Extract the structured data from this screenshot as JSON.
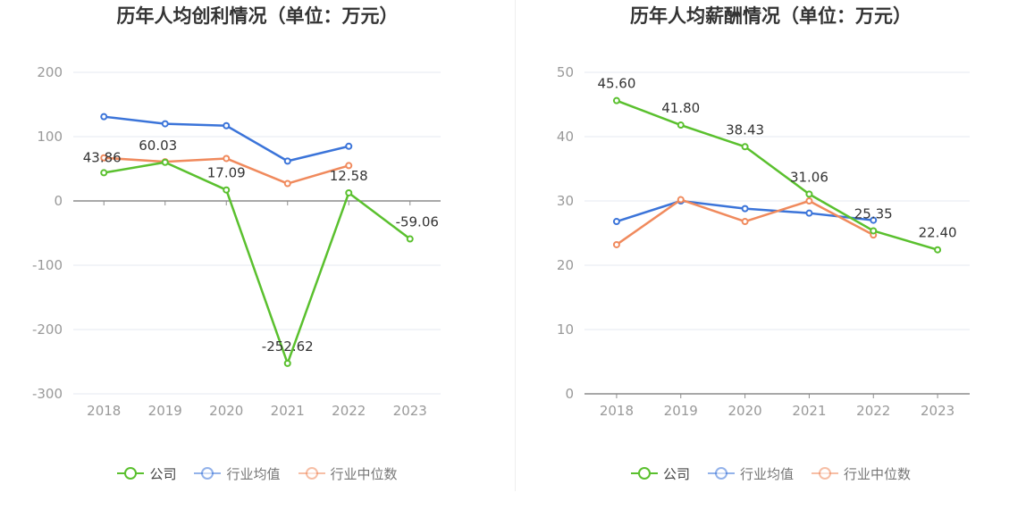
{
  "chart_data": [
    {
      "type": "line",
      "title": "历年人均创利情况（单位：万元）",
      "categories": [
        "2018",
        "2019",
        "2020",
        "2021",
        "2022",
        "2023"
      ],
      "ylim": [
        -300,
        200
      ],
      "yticks": [
        "200",
        "100",
        "0",
        "-100",
        "-200",
        "-300"
      ],
      "ytick_values": [
        200,
        100,
        0,
        -100,
        -200,
        -300
      ],
      "grid": true,
      "legend_position": "bottom",
      "series": [
        {
          "name": "公司",
          "color": "#5ac02e",
          "values": [
            43.86,
            60.03,
            17.09,
            -252.62,
            12.58,
            -59.06
          ],
          "labels": [
            "43.86",
            "60.03",
            "17.09",
            "-252.62",
            "12.58",
            "-59.06"
          ]
        },
        {
          "name": "行业均值",
          "color": "#3b74d9",
          "values": [
            131,
            120,
            117,
            62,
            85,
            null
          ]
        },
        {
          "name": "行业中位数",
          "color": "#f08a5d",
          "values": [
            67,
            61,
            66,
            27,
            55,
            null
          ]
        }
      ]
    },
    {
      "type": "line",
      "title": "历年人均薪酬情况（单位：万元）",
      "categories": [
        "2018",
        "2019",
        "2020",
        "2021",
        "2022",
        "2023"
      ],
      "ylim": [
        0,
        50
      ],
      "yticks": [
        "50",
        "40",
        "30",
        "20",
        "10",
        "0"
      ],
      "ytick_values": [
        50,
        40,
        30,
        20,
        10,
        0
      ],
      "grid": true,
      "legend_position": "bottom",
      "series": [
        {
          "name": "公司",
          "color": "#5ac02e",
          "values": [
            45.6,
            41.8,
            38.43,
            31.06,
            25.35,
            22.4
          ],
          "labels": [
            "45.60",
            "41.80",
            "38.43",
            "31.06",
            "25.35",
            "22.40"
          ]
        },
        {
          "name": "行业均值",
          "color": "#3b74d9",
          "values": [
            26.8,
            30.0,
            28.8,
            28.1,
            27.0,
            null
          ]
        },
        {
          "name": "行业中位数",
          "color": "#f08a5d",
          "values": [
            23.2,
            30.2,
            26.8,
            30.0,
            24.7,
            null
          ]
        }
      ]
    }
  ]
}
